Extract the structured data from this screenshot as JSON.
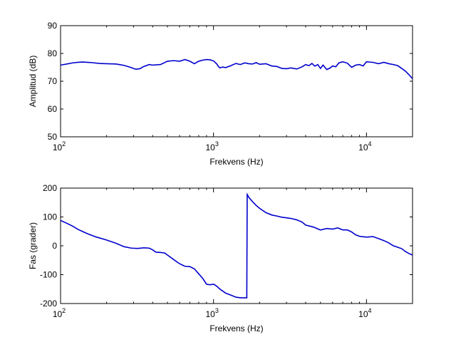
{
  "chart_data": [
    {
      "type": "line",
      "xlabel": "Frekvens (Hz)",
      "ylabel": "Amplitud (dB)",
      "xscale": "log",
      "xlim": [
        100,
        20000
      ],
      "ylim": [
        50,
        90
      ],
      "yticks": [
        50,
        60,
        70,
        80,
        90
      ],
      "xticks": [
        {
          "value": 100,
          "base": "10",
          "exp": "2"
        },
        {
          "value": 1000,
          "base": "10",
          "exp": "3"
        },
        {
          "value": 10000,
          "base": "10",
          "exp": "4"
        }
      ],
      "color": "#0000cc",
      "series": [
        {
          "x": [
            100,
            110,
            120,
            130,
            140,
            160,
            180,
            200,
            230,
            260,
            290,
            310,
            330,
            350,
            380,
            400,
            450,
            500,
            550,
            600,
            650,
            700,
            750,
            800,
            850,
            900,
            950,
            1000,
            1050,
            1080,
            1100,
            1150,
            1200,
            1300,
            1400,
            1500,
            1600,
            1700,
            1800,
            1900,
            2000,
            2200,
            2400,
            2600,
            2800,
            3000,
            3200,
            3500,
            3800,
            4000,
            4200,
            4400,
            4600,
            4800,
            5000,
            5200,
            5500,
            5800,
            6000,
            6300,
            6600,
            7000,
            7500,
            8000,
            8500,
            9000,
            9500,
            10000,
            11000,
            12000,
            13000,
            14000,
            15000,
            16000,
            17000,
            18000,
            19000,
            20000
          ],
          "y": [
            75.8,
            76.2,
            76.6,
            76.8,
            76.9,
            76.7,
            76.4,
            76.3,
            76.2,
            75.7,
            74.9,
            74.3,
            74.5,
            75.3,
            76.0,
            75.8,
            76.0,
            77.2,
            77.4,
            77.2,
            77.8,
            77.2,
            76.3,
            77.2,
            77.6,
            77.8,
            77.7,
            77.3,
            76.2,
            75.2,
            74.8,
            75.1,
            74.9,
            75.6,
            76.4,
            76.0,
            76.6,
            76.3,
            76.2,
            76.7,
            76.1,
            76.3,
            75.5,
            75.3,
            74.6,
            74.5,
            74.8,
            74.4,
            75.2,
            76.0,
            75.6,
            76.4,
            75.4,
            76.0,
            74.6,
            75.8,
            74.2,
            74.8,
            75.5,
            75.2,
            76.6,
            77.0,
            76.5,
            75.0,
            75.8,
            76.0,
            75.5,
            77.0,
            76.8,
            76.3,
            76.8,
            76.3,
            76.0,
            75.6,
            74.6,
            73.6,
            72.3,
            70.9
          ]
        }
      ]
    },
    {
      "type": "line",
      "xlabel": "Frekvens (Hz)",
      "ylabel": "Fas (grader)",
      "xscale": "log",
      "xlim": [
        100,
        20000
      ],
      "ylim": [
        -200,
        200
      ],
      "yticks": [
        -200,
        -100,
        0,
        100,
        200
      ],
      "xticks": [
        {
          "value": 100,
          "base": "10",
          "exp": "2"
        },
        {
          "value": 1000,
          "base": "10",
          "exp": "3"
        },
        {
          "value": 10000,
          "base": "10",
          "exp": "4"
        }
      ],
      "color": "#0000cc",
      "series": [
        {
          "x": [
            100,
            110,
            120,
            130,
            140,
            150,
            170,
            200,
            230,
            260,
            290,
            320,
            350,
            380,
            400,
            420,
            450,
            480,
            500,
            550,
            600,
            650,
            700,
            750,
            800,
            850,
            900,
            950,
            1000,
            1050,
            1100,
            1150,
            1200,
            1300,
            1400,
            1500,
            1600,
            1650,
            1660,
            1670,
            1700,
            1800,
            1900,
            2000,
            2200,
            2400,
            2600,
            2800,
            3000,
            3200,
            3500,
            3800,
            4000,
            4500,
            5000,
            5500,
            6000,
            6500,
            7000,
            7500,
            8000,
            8500,
            9000,
            10000,
            11000,
            12000,
            13000,
            14000,
            15000,
            16000,
            17000,
            18000,
            19000,
            20000
          ],
          "y": [
            88,
            78,
            68,
            57,
            49,
            42,
            31,
            20,
            9,
            -3,
            -8,
            -9,
            -7,
            -8,
            -14,
            -22,
            -23,
            -25,
            -32,
            -48,
            -62,
            -71,
            -72,
            -80,
            -97,
            -113,
            -133,
            -135,
            -133,
            -140,
            -150,
            -157,
            -164,
            -171,
            -178,
            -180,
            -180,
            -180,
            178,
            176,
            168,
            153,
            140,
            130,
            115,
            107,
            103,
            99,
            97,
            95,
            90,
            82,
            72,
            65,
            55,
            60,
            58,
            62,
            55,
            55,
            48,
            38,
            33,
            30,
            32,
            25,
            18,
            10,
            0,
            -5,
            -10,
            -20,
            -27,
            -32
          ]
        }
      ]
    }
  ]
}
